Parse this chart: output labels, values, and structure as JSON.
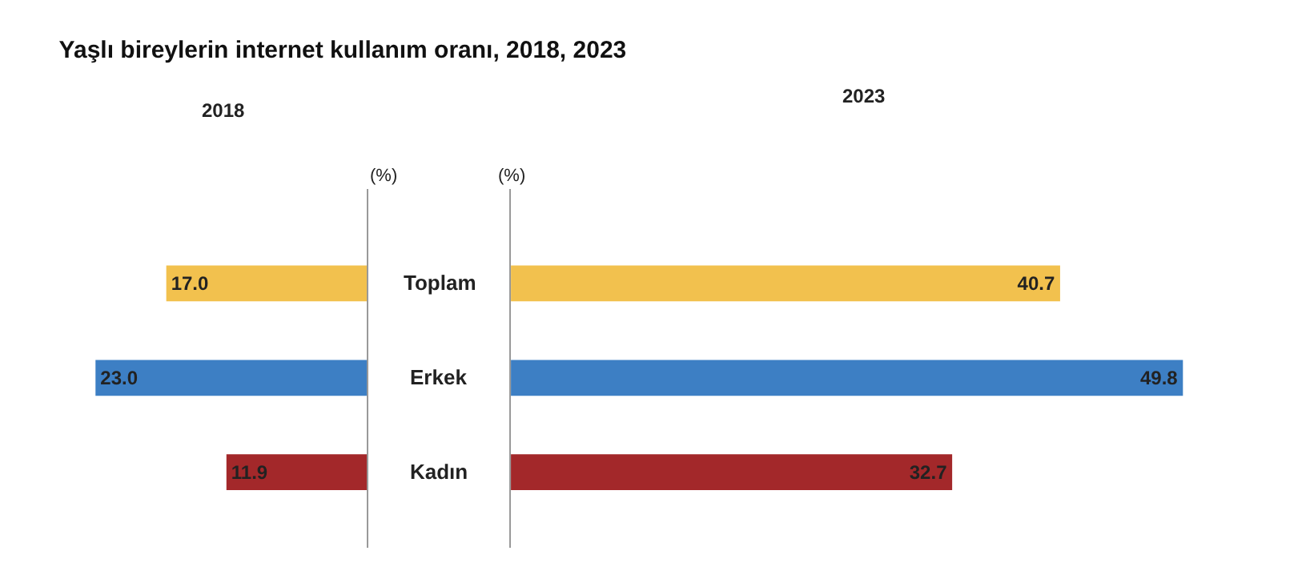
{
  "chart_data": [
    {
      "type": "bar",
      "orientation": "horizontal",
      "title": "Yaşlı bireylerin internet kullanım oranı, 2018, 2023",
      "subtitle": "2018",
      "ylabel": "(%)",
      "categories": [
        null,
        null,
        null
      ],
      "values": [
        17.0,
        23.0,
        11.9
      ],
      "value_labels": [
        "17.0",
        "23.0",
        "11.9"
      ],
      "colors": [
        "#f2c14e",
        "#3d7fc4",
        "#a3282a"
      ]
    },
    {
      "type": "bar",
      "orientation": "horizontal",
      "subtitle": "2023",
      "ylabel": "(%)",
      "categories": [
        "Toplam",
        "Erkek",
        "Kadın"
      ],
      "values": [
        40.7,
        49.8,
        32.7
      ],
      "value_labels": [
        "40.7",
        "49.8",
        "32.7"
      ],
      "colors": [
        "#f2c14e",
        "#3d7fc4",
        "#a3282a"
      ]
    }
  ]
}
